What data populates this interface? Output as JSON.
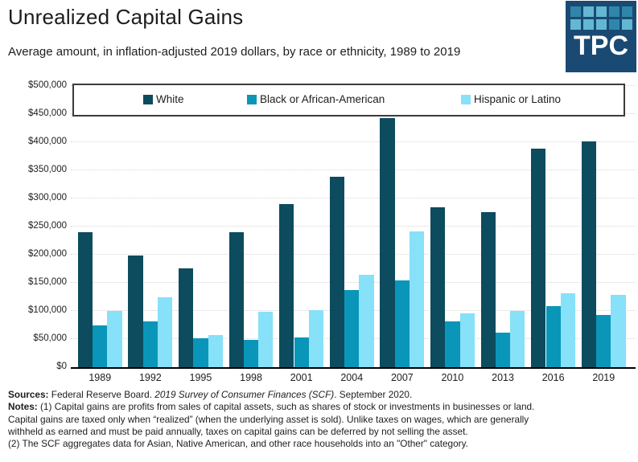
{
  "header": {
    "title": "Unrealized Capital Gains",
    "subtitle": "Average amount, in inflation-adjusted 2019 dollars, by race or ethnicity, 1989 to 2019",
    "logo": {
      "text": "TPC",
      "tiles": [
        "m",
        "l",
        "l",
        "m",
        "m",
        "l",
        "l",
        "l",
        "m",
        "l"
      ]
    }
  },
  "colors": {
    "series_white": "#0d4b5e",
    "series_black": "#0a96b9",
    "series_hispanic": "#86e1f9",
    "gridline": "#d6d6d6",
    "axis": "#000000",
    "legend_border": "#3b3b3b",
    "logo_background": "#1a4a73",
    "logo_tile_light": "#63b7d2",
    "logo_tile_medium": "#2f86ab"
  },
  "chart_data": {
    "type": "bar",
    "title": "Unrealized Capital Gains",
    "subtitle": "Average amount, in inflation-adjusted 2019 dollars, by race or ethnicity, 1989 to 2019",
    "categories": [
      "1989",
      "1992",
      "1995",
      "1998",
      "2001",
      "2004",
      "2007",
      "2010",
      "2013",
      "2016",
      "2019"
    ],
    "series": [
      {
        "name": "White",
        "color": "#0d4b5e",
        "values": [
          240000,
          198000,
          176000,
          240000,
          290000,
          338000,
          443000,
          285000,
          276000,
          388000,
          401000
        ]
      },
      {
        "name": "Black or African-American",
        "color": "#0a96b9",
        "values": [
          74000,
          82000,
          52000,
          49000,
          53000,
          137000,
          154000,
          82000,
          62000,
          108000,
          93000
        ]
      },
      {
        "name": "Hispanic or Latino",
        "color": "#86e1f9",
        "values": [
          100000,
          124000,
          57000,
          99000,
          102000,
          164000,
          242000,
          96000,
          100000,
          131000,
          129000
        ]
      }
    ],
    "xlabel": "",
    "ylabel": "",
    "ylim": [
      0,
      500000
    ],
    "ytick_step": 50000,
    "ytick_labels": [
      "$0",
      "$50,000",
      "$100,000",
      "$150,000",
      "$200,000",
      "$250,000",
      "$300,000",
      "$350,000",
      "$400,000",
      "$450,000",
      "$500,000"
    ],
    "grid": "horizontal dotted",
    "legend_position": "top"
  },
  "footer": {
    "sources_label": "Sources:",
    "sources_text_1": " Federal Reserve Board. ",
    "sources_italic": "2019 Survey of Consumer Finances (SCF)",
    "sources_text_2": ". September 2020.",
    "notes_label": "Notes:",
    "notes_line_1": " (1) Capital gains are profits from sales of capital assets, such as shares of stock or investments in businesses or land.",
    "notes_line_2": "Capital gains are taxed only when “realized” (when the underlying asset is sold). Unlike taxes on wages, which are generally",
    "notes_line_3": "withheld as earned and must be paid annually, taxes on capital gains can be deferred by not selling the asset.",
    "notes_line_4": "(2) The SCF aggregates data for Asian, Native American, and other race households into an \"Other\" category."
  }
}
